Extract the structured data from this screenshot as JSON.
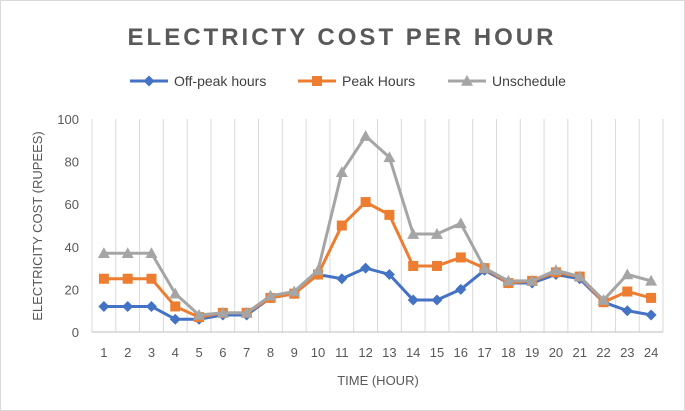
{
  "chart_data": {
    "type": "line",
    "title": "ELECTRICTY COST PER HOUR",
    "xlabel": "TIME (HOUR)",
    "ylabel": "ELECTRICITY COST (RUPEES)",
    "ylim": [
      0,
      100
    ],
    "yticks": [
      0,
      20,
      40,
      60,
      80,
      100
    ],
    "grid": "vertical",
    "legend_position": "top",
    "x": [
      1,
      2,
      3,
      4,
      5,
      6,
      7,
      8,
      9,
      10,
      11,
      12,
      13,
      14,
      15,
      16,
      17,
      18,
      19,
      20,
      21,
      22,
      23,
      24
    ],
    "series": [
      {
        "name": "Off-peak hours",
        "color": "#4472c4",
        "marker": "diamond",
        "values": [
          12,
          12,
          12,
          6,
          6,
          8,
          8,
          16,
          18,
          27,
          25,
          30,
          27,
          15,
          15,
          20,
          29,
          23,
          23,
          27,
          25,
          14,
          10,
          8
        ]
      },
      {
        "name": "Peak Hours",
        "color": "#ed7d31",
        "marker": "square",
        "values": [
          25,
          25,
          25,
          12,
          7,
          9,
          9,
          16,
          18,
          27,
          50,
          61,
          55,
          31,
          31,
          35,
          30,
          23,
          24,
          28,
          26,
          14,
          19,
          16
        ]
      },
      {
        "name": "Unschedule",
        "color": "#a5a5a5",
        "marker": "triangle",
        "values": [
          37,
          37,
          37,
          18,
          8,
          9,
          9,
          17,
          19,
          29,
          75,
          92,
          82,
          46,
          46,
          51,
          30,
          24,
          24,
          29,
          26,
          15,
          27,
          24
        ]
      }
    ]
  }
}
